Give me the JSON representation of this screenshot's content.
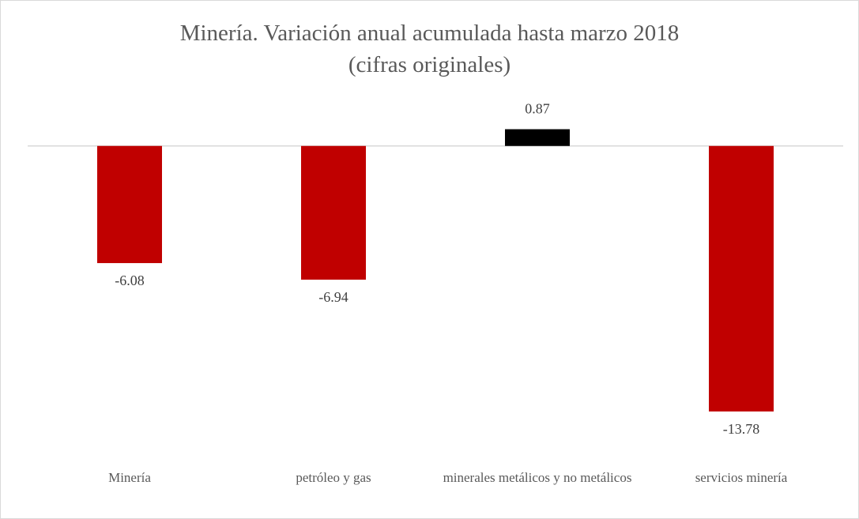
{
  "chart_data": {
    "type": "bar",
    "title": "Minería. Variación anual acumulada hasta marzo 2018\n(cifras originales)",
    "categories": [
      "Minería",
      "petróleo y gas",
      "minerales metálicos y no metálicos",
      "servicios minería"
    ],
    "values": [
      -6.08,
      -6.94,
      0.87,
      -13.78
    ],
    "colors": [
      "#c00000",
      "#c00000",
      "#000000",
      "#c00000"
    ],
    "ylim": [
      -16,
      2
    ]
  }
}
